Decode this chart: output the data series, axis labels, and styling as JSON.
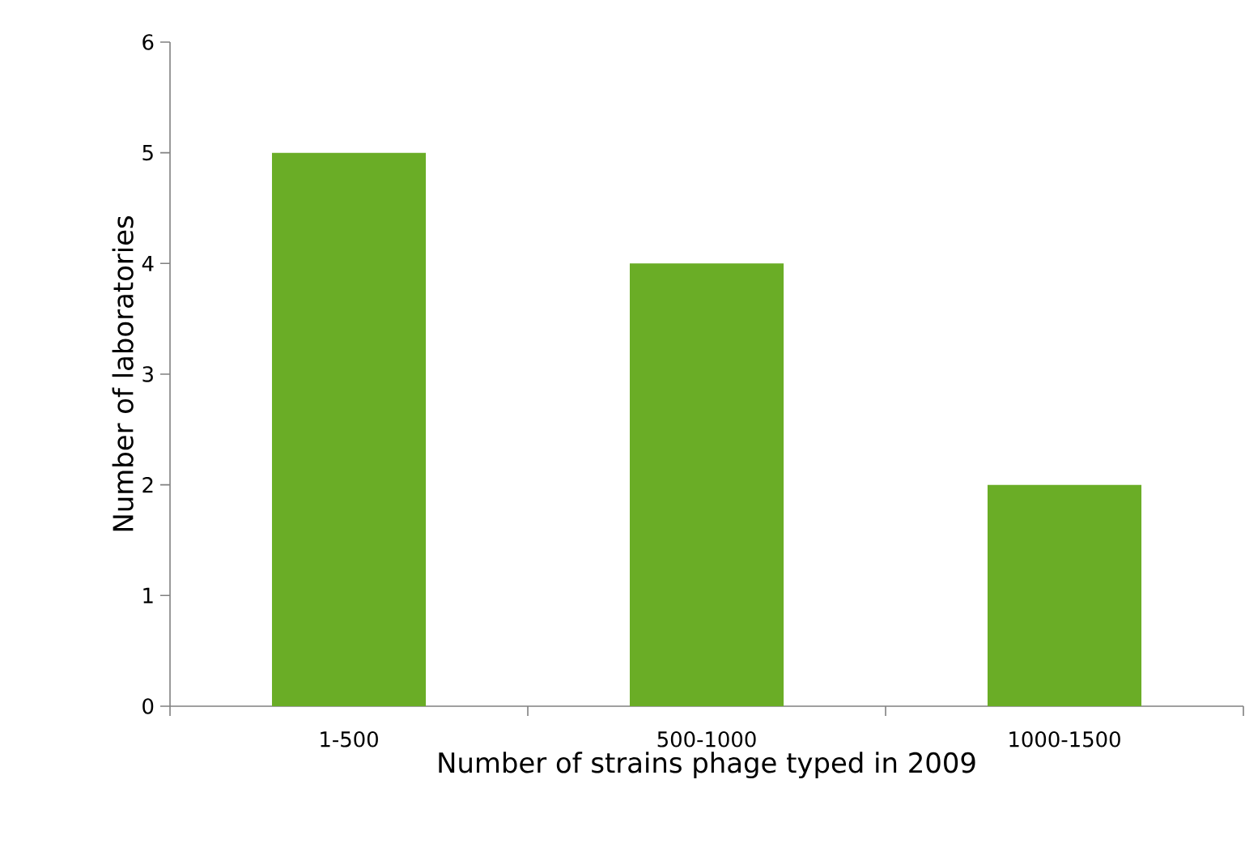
{
  "chart_data": {
    "type": "bar",
    "xlabel": "Number of strains phage typed in 2009",
    "ylabel": "Number of laboratories",
    "categories": [
      "1-500",
      "500-1000",
      "1000-1500"
    ],
    "values": [
      5,
      4,
      2
    ],
    "color": "#6aad26",
    "ylim": [
      0,
      6
    ],
    "yticks": [
      0,
      1,
      2,
      3,
      4,
      5,
      6
    ]
  }
}
